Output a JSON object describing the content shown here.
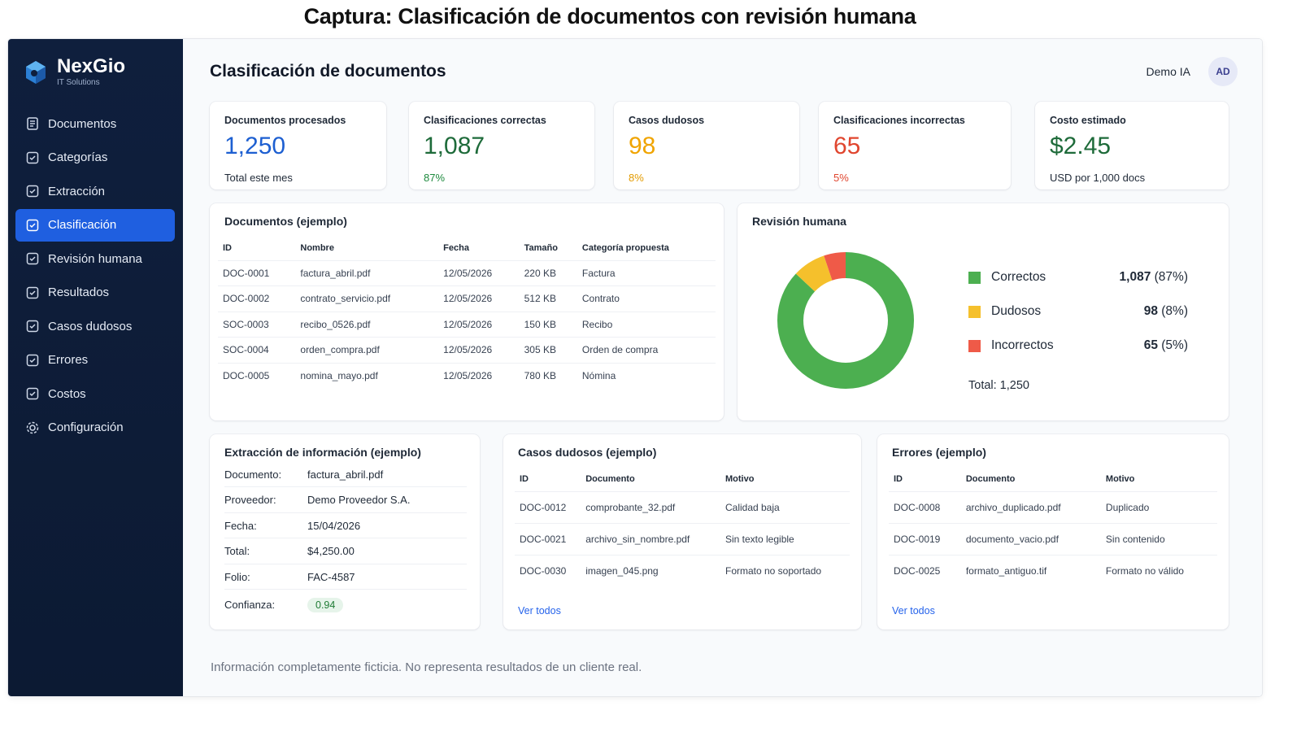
{
  "caption": "Captura: Clasificación de documentos con revisión humana",
  "brand": {
    "name": "NexGio",
    "subtitle": "IT Solutions"
  },
  "sidebar": {
    "items": [
      {
        "label": "Documentos",
        "icon": "document-icon"
      },
      {
        "label": "Categorías",
        "icon": "category-icon"
      },
      {
        "label": "Extracción",
        "icon": "extraction-icon"
      },
      {
        "label": "Clasificación",
        "icon": "classification-icon",
        "active": true
      },
      {
        "label": "Revisión humana",
        "icon": "review-icon"
      },
      {
        "label": "Resultados",
        "icon": "results-icon"
      },
      {
        "label": "Casos dudosos",
        "icon": "doubt-icon"
      },
      {
        "label": "Errores",
        "icon": "error-icon"
      },
      {
        "label": "Costos",
        "icon": "cost-icon"
      },
      {
        "label": "Configuración",
        "icon": "gear-icon"
      }
    ]
  },
  "header": {
    "title": "Clasificación de documentos",
    "user": "Demo IA",
    "avatar": "AD"
  },
  "kpis": [
    {
      "label": "Documentos procesados",
      "value": "1,250",
      "sub": "Total este mes",
      "color": "#1d5fd1",
      "sub_color": "#1f2937"
    },
    {
      "label": "Clasificaciones correctas",
      "value": "1,087",
      "sub": "87%",
      "color": "#1e6b3a",
      "sub_color": "#1e8a3e"
    },
    {
      "label": "Casos dudosos",
      "value": "98",
      "sub": "8%",
      "color": "#f0a400",
      "sub_color": "#e39b00"
    },
    {
      "label": "Clasificaciones incorrectas",
      "value": "65",
      "sub": "5%",
      "color": "#e0462f",
      "sub_color": "#e0462f"
    },
    {
      "label": "Costo estimado",
      "value": "$2.45",
      "sub": "USD por 1,000 docs",
      "color": "#1e6b3a",
      "sub_color": "#1f2937"
    }
  ],
  "documents": {
    "title": "Documentos (ejemplo)",
    "columns": [
      "ID",
      "Nombre",
      "Fecha",
      "Tamaño",
      "Categoría propuesta"
    ],
    "rows": [
      [
        "DOC-0001",
        "factura_abril.pdf",
        "12/05/2026",
        "220 KB",
        "Factura"
      ],
      [
        "DOC-0002",
        "contrato_servicio.pdf",
        "12/05/2026",
        "512 KB",
        "Contrato"
      ],
      [
        "SOC-0003",
        "recibo_0526.pdf",
        "12/05/2026",
        "150 KB",
        "Recibo"
      ],
      [
        "SOC-0004",
        "orden_compra.pdf",
        "12/05/2026",
        "305 KB",
        "Orden de compra"
      ],
      [
        "DOC-0005",
        "nomina_mayo.pdf",
        "12/05/2026",
        "780 KB",
        "Nómina"
      ]
    ]
  },
  "review": {
    "title": "Revisión humana",
    "legend": [
      {
        "name": "Correctos",
        "count": "1,087",
        "pct": "(87%)",
        "color": "#4caf50"
      },
      {
        "name": "Dudosos",
        "count": "98",
        "pct": "(8%)",
        "color": "#f5c02c"
      },
      {
        "name": "Incorrectos",
        "count": "65",
        "pct": "(5%)",
        "color": "#ef5a48"
      }
    ],
    "total": "Total: 1,250"
  },
  "chart_data": {
    "type": "pie",
    "categories": [
      "Correctos",
      "Dudosos",
      "Incorrectos"
    ],
    "values": [
      1087,
      98,
      65
    ],
    "title": "Revisión humana"
  },
  "extraction": {
    "title": "Extracción de información (ejemplo)",
    "fields": [
      {
        "k": "Documento:",
        "v": "factura_abril.pdf"
      },
      {
        "k": "Proveedor:",
        "v": "Demo Proveedor S.A."
      },
      {
        "k": "Fecha:",
        "v": "15/04/2026"
      },
      {
        "k": "Total:",
        "v": "$4,250.00"
      },
      {
        "k": "Folio:",
        "v": "FAC-4587"
      }
    ],
    "confidence_label": "Confianza:",
    "confidence_value": "0.94"
  },
  "doubtful": {
    "title": "Casos dudosos (ejemplo)",
    "columns": [
      "ID",
      "Documento",
      "Motivo"
    ],
    "rows": [
      [
        "DOC-0012",
        "comprobante_32.pdf",
        "Calidad baja"
      ],
      [
        "DOC-0021",
        "archivo_sin_nombre.pdf",
        "Sin texto legible"
      ],
      [
        "DOC-0030",
        "imagen_045.png",
        "Formato no soportado"
      ]
    ],
    "link": "Ver todos"
  },
  "errors": {
    "title": "Errores (ejemplo)",
    "columns": [
      "ID",
      "Documento",
      "Motivo"
    ],
    "rows": [
      [
        "DOC-0008",
        "archivo_duplicado.pdf",
        "Duplicado"
      ],
      [
        "DOC-0019",
        "documento_vacio.pdf",
        "Sin contenido"
      ],
      [
        "DOC-0025",
        "formato_antiguo.tif",
        "Formato no válido"
      ]
    ],
    "link": "Ver todos"
  },
  "footer": "Información completamente ficticia. No representa resultados de un cliente real."
}
